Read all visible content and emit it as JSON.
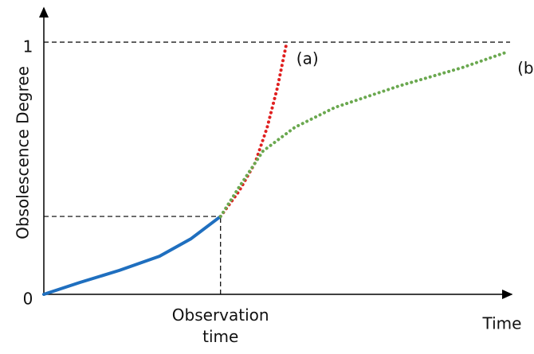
{
  "chart_data": {
    "type": "line",
    "x_label": "Time",
    "y_label": "Obsolescence Degree",
    "xlim": [
      0,
      1
    ],
    "ylim": [
      0,
      1.12
    ],
    "yticks": [
      0,
      1
    ],
    "x_marker": {
      "value": 0.379,
      "label": "Observation time"
    },
    "series": [
      {
        "color": "#1f6fbf",
        "style": "solid",
        "x": [
          0,
          0.077,
          0.162,
          0.248,
          0.316,
          0.379
        ],
        "values": [
          0,
          0.047,
          0.095,
          0.151,
          0.221,
          0.309
        ]
      },
      {
        "name": "(a)",
        "color": "#e02020",
        "style": "dotted",
        "x": [
          0.379,
          0.419,
          0.453,
          0.479,
          0.501,
          0.521
        ],
        "values": [
          0.309,
          0.41,
          0.521,
          0.662,
          0.82,
          1
        ]
      },
      {
        "name": "(b)",
        "color": "#6aa84f",
        "style": "dotted",
        "x": [
          0.379,
          0.419,
          0.47,
          0.538,
          0.624,
          0.761,
          0.897,
          0.995
        ],
        "values": [
          0.309,
          0.426,
          0.568,
          0.662,
          0.741,
          0.826,
          0.899,
          0.962
        ]
      }
    ]
  }
}
